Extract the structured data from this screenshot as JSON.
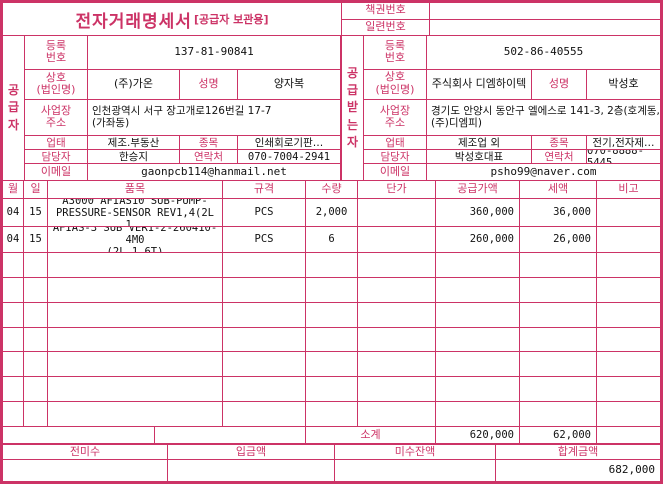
{
  "colors": {
    "accent": "#cc3366",
    "text": "#111111"
  },
  "header": {
    "title": "전자거래명세서",
    "title_sub": "[공급자 보관용]",
    "book_no_label": "책권번호",
    "book_no_value": "",
    "serial_no_label": "일련번호",
    "serial_no_value": ""
  },
  "labels": {
    "supplier_vertical": "공급자",
    "buyer_vertical": "공급받는자",
    "reg_no": "등록\n번호",
    "company": "상호\n(법인명)",
    "ceo": "성명",
    "address": "사업장\n주소",
    "biz_type": "업태",
    "biz_item": "종목",
    "manager": "담당자",
    "contact": "연락처",
    "email": "이메일"
  },
  "supplier": {
    "reg_no": "137-81-90841",
    "company": "(주)가온",
    "ceo": "양자복",
    "address": "인천광역시 서구 장고개로126번길 17-7\n(가좌동)",
    "biz_type": "제조.부동산",
    "biz_item": "인쇄회로기판…",
    "manager": "한승지",
    "phone": "070-7004-2941",
    "email": "gaonpcb114@hanmail.net"
  },
  "buyer": {
    "reg_no": "502-86-40555",
    "company": "주식회사 디엠하이텍",
    "ceo": "박성호",
    "address": "경기도 안양시 동안구 엘에스로 141-3, 2층(호계동, (주)디엠피)",
    "biz_type": "제조업 외",
    "biz_item": "전기,전자제…",
    "manager": "박성호대표",
    "phone": "070-8888-5445",
    "email": "psho99@naver.com"
  },
  "table": {
    "headers": {
      "month": "월",
      "day": "일",
      "item": "품목",
      "spec": "규격",
      "qty": "수량",
      "unit_price": "단가",
      "supply": "공급가액",
      "tax": "세액",
      "note": "비고"
    },
    "items": [
      {
        "month": "04",
        "day": "15",
        "name": "A3000 AFIAS10 SUB-PUMP-\nPRESSURE-SENSOR REV1,4(2L 1,…",
        "spec": "PCS",
        "qty": "2,000",
        "unit_price": "",
        "supply": "360,000",
        "tax": "36,000",
        "note": ""
      },
      {
        "month": "04",
        "day": "15",
        "name": "AFIAS-3 SUB VER1-2-260410-4M0\n(2L 1,6T)",
        "spec": "PCS",
        "qty": "6",
        "unit_price": "",
        "supply": "260,000",
        "tax": "26,000",
        "note": ""
      }
    ],
    "empty_row_count": 7,
    "subtotal": {
      "label": "소계",
      "supply": "620,000",
      "tax": "62,000"
    }
  },
  "footer": {
    "prev_label": "전미수",
    "deposit_label": "입금액",
    "balance_label": "미수잔액",
    "total_label": "합계금액",
    "prev": "",
    "deposit": "",
    "balance": "",
    "total": "682,000"
  }
}
